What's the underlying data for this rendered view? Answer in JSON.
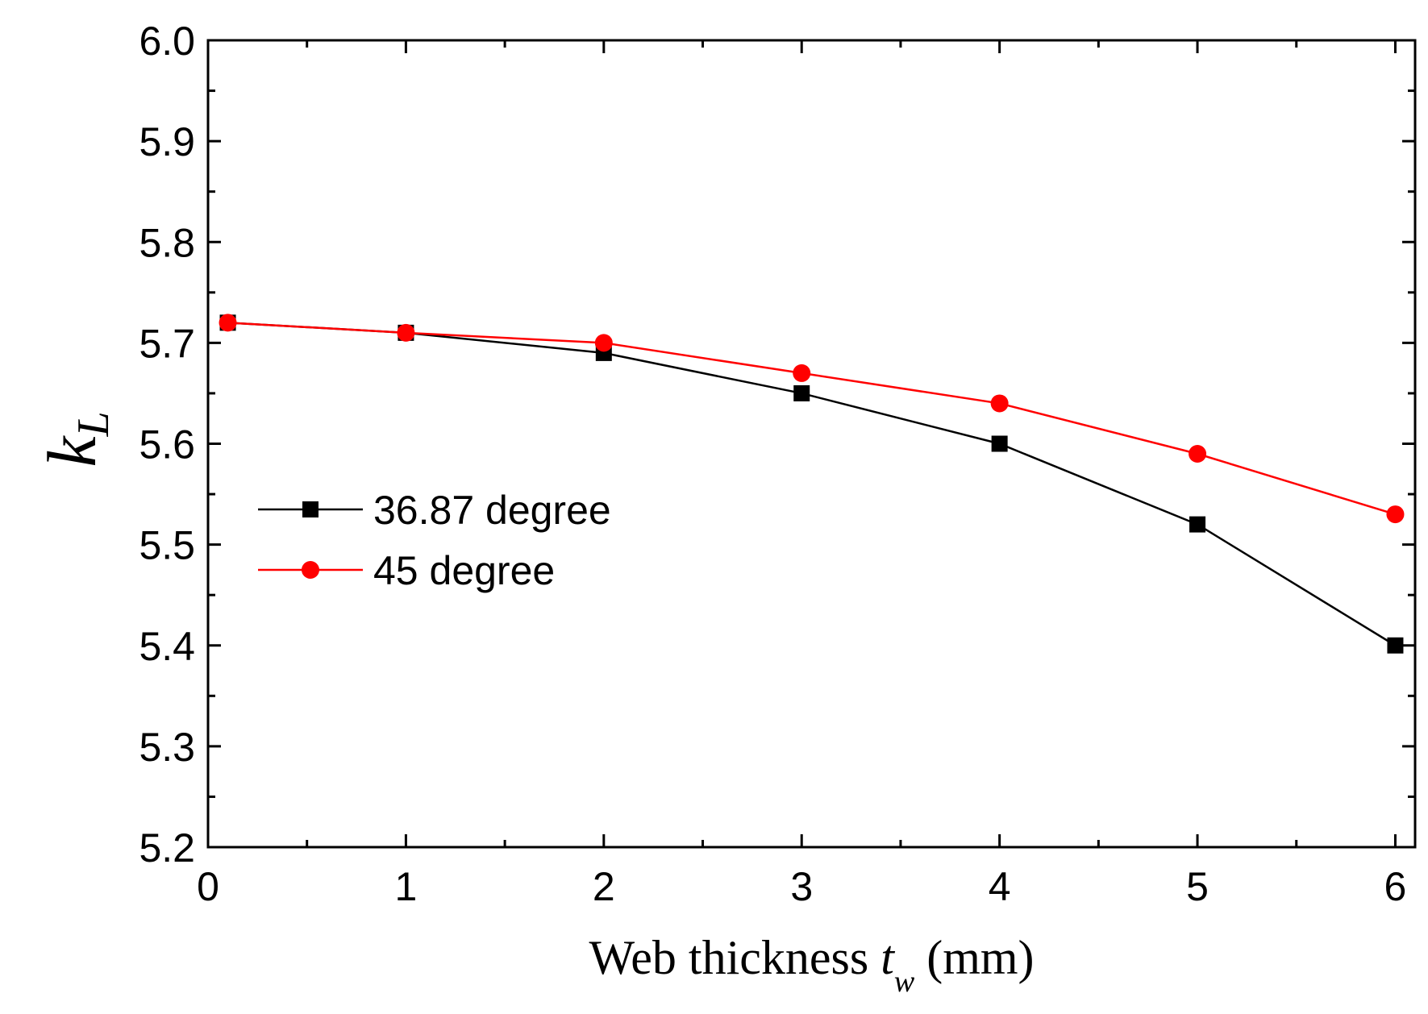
{
  "chart_data": {
    "type": "line",
    "title": "",
    "xlabel": {
      "prefix": "Web thickness ",
      "var": "t",
      "sub": "w",
      "suffix": " (mm)"
    },
    "ylabel": {
      "var": "k",
      "sub": "L"
    },
    "xlim": [
      0,
      6.1
    ],
    "ylim": [
      5.2,
      6.0
    ],
    "x_ticks": [
      0,
      1,
      2,
      3,
      4,
      5,
      6
    ],
    "x_minor_ticks": [
      0.5,
      1.5,
      2.5,
      3.5,
      4.5,
      5.5
    ],
    "x_tick_labels": [
      "0",
      "1",
      "2",
      "3",
      "4",
      "5",
      "6"
    ],
    "y_ticks": [
      5.2,
      5.3,
      5.4,
      5.5,
      5.6,
      5.7,
      5.8,
      5.9,
      6.0
    ],
    "y_minor_ticks": [
      5.25,
      5.35,
      5.45,
      5.55,
      5.65,
      5.75,
      5.85,
      5.95
    ],
    "y_tick_labels": [
      "5.2",
      "5.3",
      "5.4",
      "5.5",
      "5.6",
      "5.7",
      "5.8",
      "5.9",
      "6.0"
    ],
    "grid": false,
    "legend_position": "center-left",
    "series": [
      {
        "name": "36.87 degree",
        "color": "#000000",
        "marker": "square",
        "x": [
          0.1,
          1,
          2,
          3,
          4,
          5,
          6
        ],
        "y": [
          5.72,
          5.71,
          5.69,
          5.65,
          5.6,
          5.52,
          5.4
        ]
      },
      {
        "name": "45 degree",
        "color": "#ff0000",
        "marker": "circle",
        "x": [
          0.1,
          1,
          2,
          3,
          4,
          5,
          6
        ],
        "y": [
          5.72,
          5.71,
          5.7,
          5.67,
          5.64,
          5.59,
          5.53
        ]
      }
    ]
  }
}
